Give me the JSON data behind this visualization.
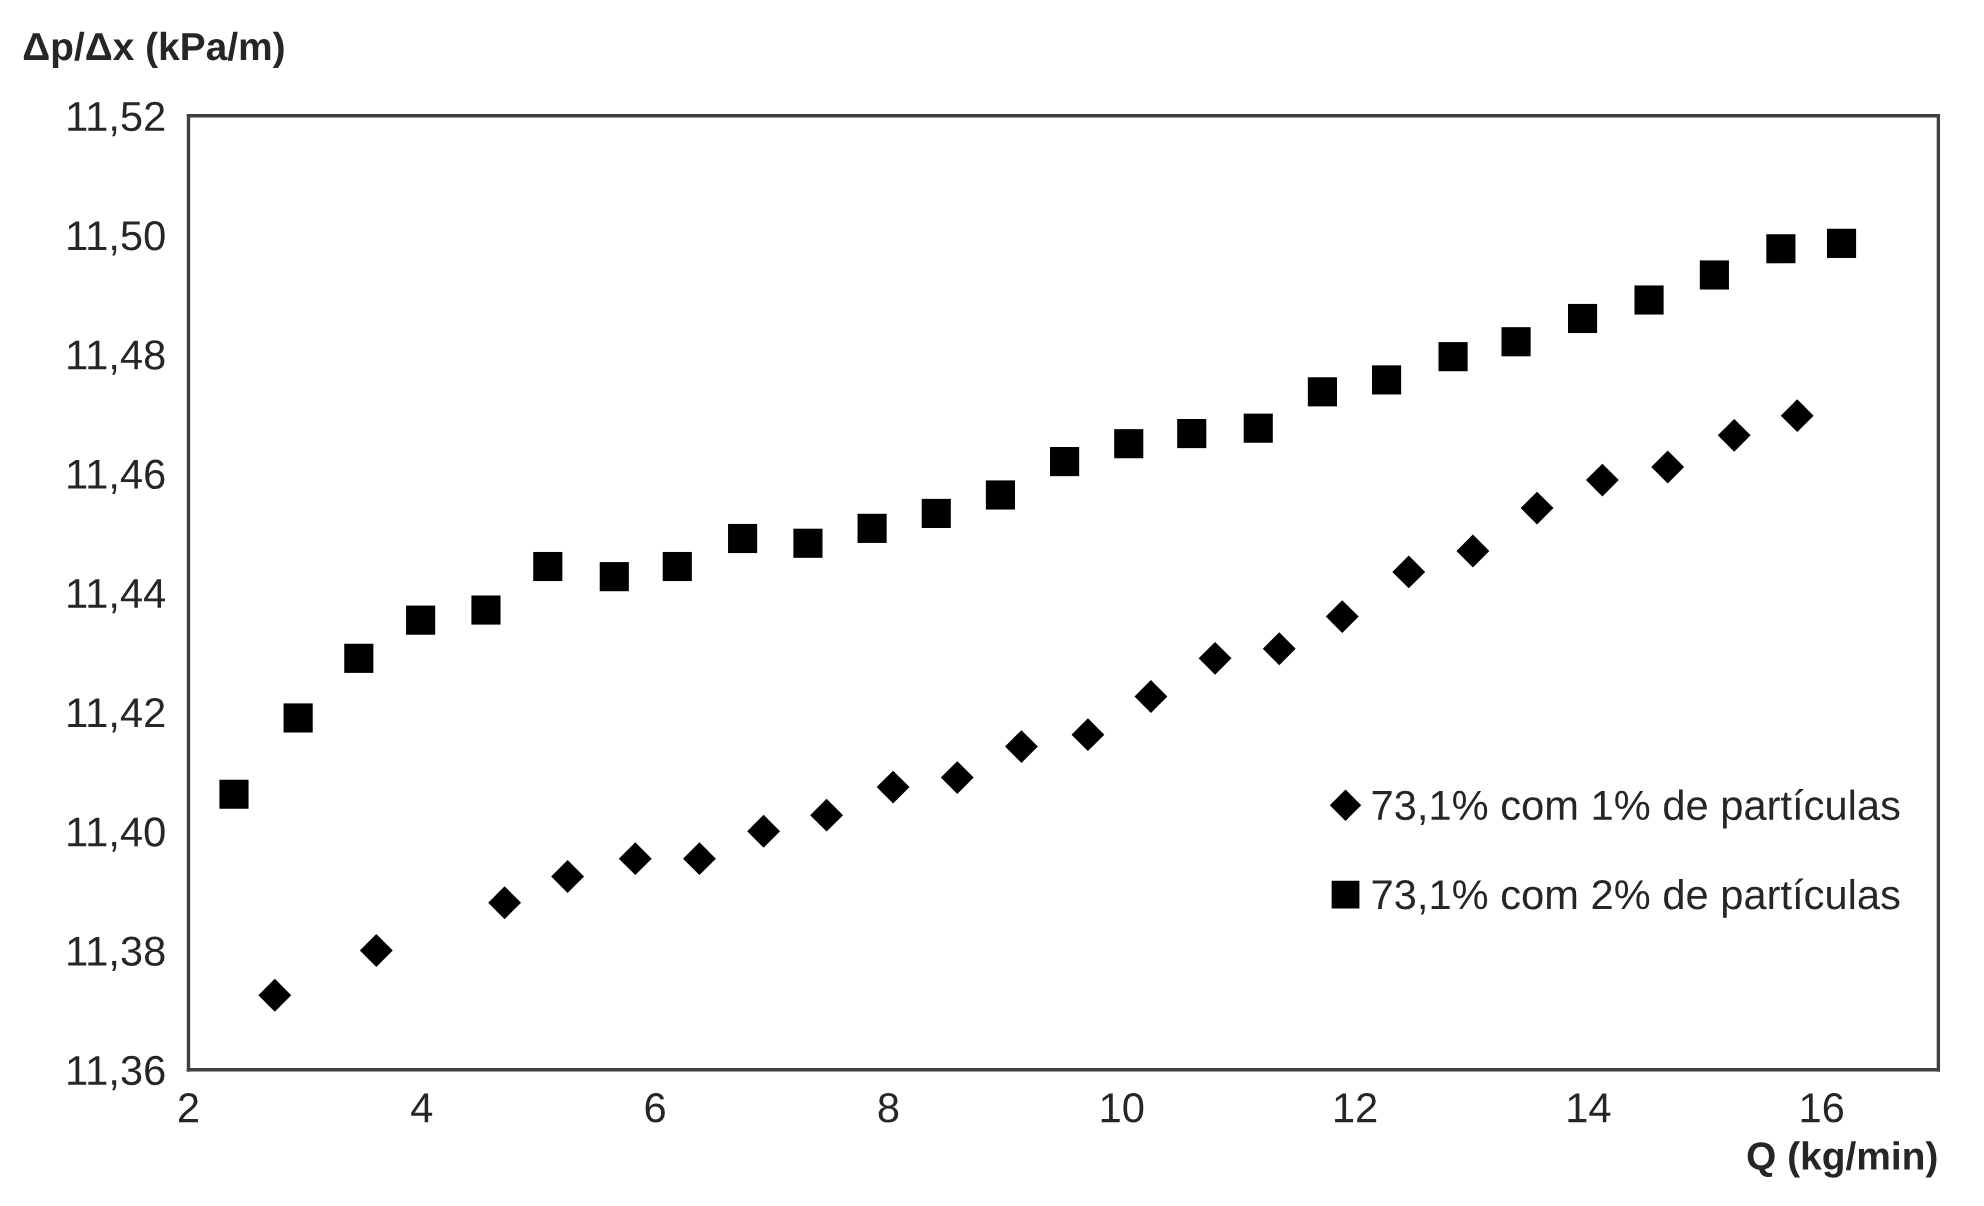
{
  "chart_data": {
    "type": "scatter",
    "xlabel": "Q (kg/min)",
    "ylabel": "Δp/Δx (kPa/m)",
    "xlim": [
      2,
      17
    ],
    "xticks": [
      2,
      4,
      6,
      8,
      10,
      12,
      14,
      16
    ],
    "ylim": [
      11.36,
      11.52
    ],
    "yticks": [
      {
        "value": 11.36,
        "label": "11,36"
      },
      {
        "value": 11.38,
        "label": "11,38"
      },
      {
        "value": 11.4,
        "label": "11,40"
      },
      {
        "value": 11.42,
        "label": "11,42"
      },
      {
        "value": 11.44,
        "label": "11,44"
      },
      {
        "value": 11.46,
        "label": "11,46"
      },
      {
        "value": 11.48,
        "label": "11,48"
      },
      {
        "value": 11.5,
        "label": "11,50"
      },
      {
        "value": 11.52,
        "label": "11,52"
      }
    ],
    "grid": false,
    "legend": "bottom right",
    "series": [
      {
        "name": "73,1% com 1% de partículas",
        "color": "#000000",
        "marker": "diamond",
        "x": [
          2.74,
          3.61,
          4.71,
          5.25,
          5.83,
          6.38,
          6.93,
          7.47,
          8.04,
          8.59,
          9.14,
          9.71,
          10.25,
          10.8,
          11.35,
          11.89,
          12.46,
          13.01,
          13.56,
          14.12,
          14.68,
          15.25,
          15.79
        ],
        "values": [
          11.3725,
          11.38,
          11.388,
          11.3924,
          11.3954,
          11.3954,
          11.4,
          11.4027,
          11.4074,
          11.409,
          11.4142,
          11.4162,
          11.4226,
          11.429,
          11.4306,
          11.436,
          11.4435,
          11.447,
          11.4542,
          11.4589,
          11.4611,
          11.4664,
          11.4697
        ]
      },
      {
        "name": "73,1% com 2% de partículas",
        "color": "#000000",
        "marker": "square",
        "x": [
          2.39,
          2.94,
          3.46,
          3.99,
          4.55,
          5.08,
          5.65,
          6.19,
          6.75,
          7.31,
          7.86,
          8.41,
          8.96,
          9.51,
          10.06,
          10.6,
          11.17,
          11.72,
          12.27,
          12.84,
          13.38,
          13.95,
          14.52,
          15.08,
          15.65,
          16.17
        ],
        "values": [
          11.4062,
          11.419,
          11.429,
          11.4354,
          11.4371,
          11.4444,
          11.4427,
          11.4444,
          11.4491,
          11.4483,
          11.4508,
          11.4533,
          11.4564,
          11.462,
          11.465,
          11.4667,
          11.4676,
          11.4737,
          11.4757,
          11.4796,
          11.4821,
          11.486,
          11.4891,
          11.4933,
          11.4977,
          11.4986
        ]
      }
    ]
  }
}
